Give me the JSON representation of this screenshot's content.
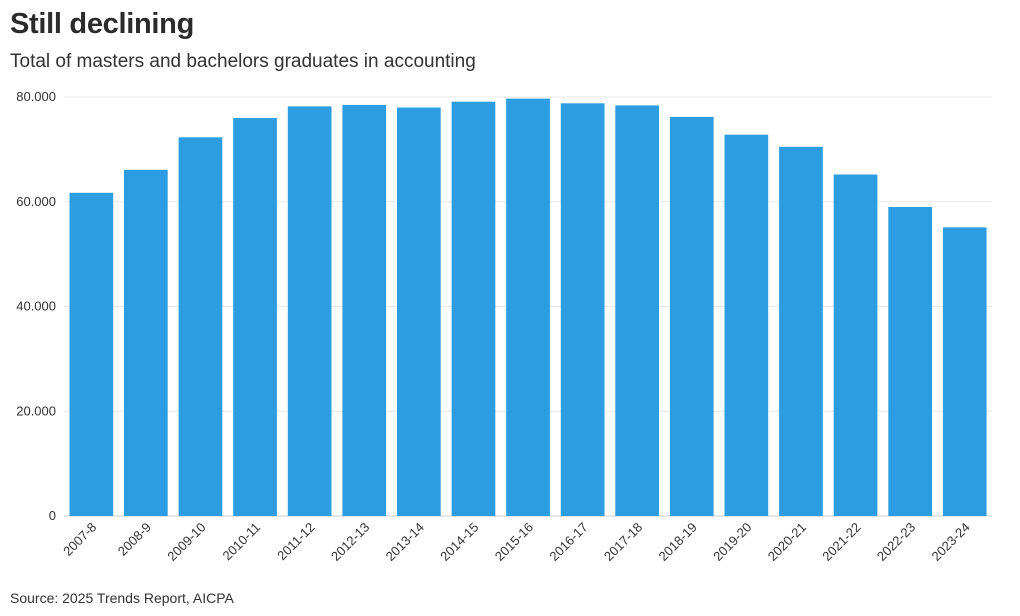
{
  "header": {
    "title": "Still declining",
    "subtitle": "Total of masters and bachelors graduates in accounting"
  },
  "footer": {
    "source": "Source: 2025 Trends Report, AICPA"
  },
  "colors": {
    "bar": "#2b9de0",
    "grid": "#e8e8e8",
    "axis": "#cccccc"
  },
  "chart_data": {
    "type": "bar",
    "title": "Still declining",
    "subtitle": "Total of masters and bachelors graduates in accounting",
    "categories": [
      "2007-8",
      "2008-9",
      "2009-10",
      "2010-11",
      "2011-12",
      "2012-13",
      "2013-14",
      "2014-15",
      "2015-16",
      "2016-17",
      "2017-18",
      "2018-19",
      "2019-20",
      "2020-21",
      "2021-22",
      "2022-23",
      "2023-24"
    ],
    "values": [
      61700,
      66100,
      72300,
      76000,
      78200,
      78500,
      78000,
      79100,
      79700,
      78800,
      78400,
      76200,
      72800,
      70500,
      65200,
      59000,
      55100
    ],
    "ylim": [
      0,
      80000
    ],
    "yticks": [
      0,
      20000,
      40000,
      60000,
      80000
    ],
    "ytick_labels": [
      "0",
      "20.000",
      "40.000",
      "60.000",
      "80.000"
    ],
    "xlabel": "",
    "ylabel": "",
    "grid": true,
    "legend": "none"
  }
}
